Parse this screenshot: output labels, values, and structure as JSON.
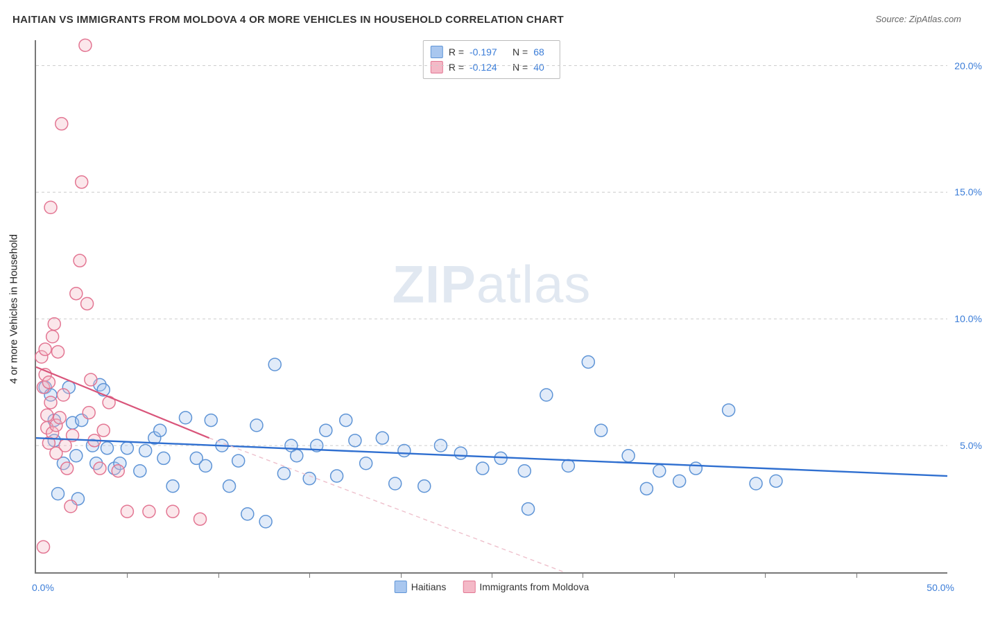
{
  "title": "HAITIAN VS IMMIGRANTS FROM MOLDOVA 4 OR MORE VEHICLES IN HOUSEHOLD CORRELATION CHART",
  "source": "Source: ZipAtlas.com",
  "y_axis_label": "4 or more Vehicles in Household",
  "watermark_bold": "ZIP",
  "watermark_light": "atlas",
  "chart": {
    "type": "scatter",
    "background_color": "#ffffff",
    "grid_color": "#cccccc",
    "axis_color": "#777777",
    "x": {
      "min": 0.0,
      "max": 50.0,
      "min_label": "0.0%",
      "max_label": "50.0%",
      "ticks_at": [
        5,
        10,
        15,
        20,
        25,
        30,
        35,
        40,
        45
      ]
    },
    "y": {
      "min": 0.0,
      "max": 21.0,
      "grid_at": [
        5,
        10,
        15,
        20
      ],
      "labels": [
        "5.0%",
        "10.0%",
        "15.0%",
        "20.0%"
      ]
    },
    "marker_radius": 9,
    "marker_stroke_width": 1.5,
    "marker_fill_opacity": 0.35,
    "series": [
      {
        "key": "haitians",
        "label": "Haitians",
        "color_fill": "#a9c7ef",
        "color_stroke": "#5e94d6",
        "R": "-0.197",
        "N": "68",
        "trend": {
          "x1": 0,
          "y1": 5.3,
          "x2": 50,
          "y2": 3.8,
          "color": "#2f6fd0",
          "width": 2.4,
          "dash": ""
        },
        "points": [
          [
            0.5,
            7.3
          ],
          [
            0.8,
            7.0
          ],
          [
            1.0,
            6.0
          ],
          [
            1.0,
            5.2
          ],
          [
            1.2,
            3.1
          ],
          [
            1.5,
            4.3
          ],
          [
            1.8,
            7.3
          ],
          [
            2.0,
            5.9
          ],
          [
            2.2,
            4.6
          ],
          [
            2.3,
            2.9
          ],
          [
            2.5,
            6.0
          ],
          [
            3.1,
            5.0
          ],
          [
            3.3,
            4.3
          ],
          [
            3.5,
            7.4
          ],
          [
            3.7,
            7.2
          ],
          [
            3.9,
            4.9
          ],
          [
            4.3,
            4.1
          ],
          [
            4.6,
            4.3
          ],
          [
            5.0,
            4.9
          ],
          [
            5.7,
            4.0
          ],
          [
            6.0,
            4.8
          ],
          [
            6.5,
            5.3
          ],
          [
            7.0,
            4.5
          ],
          [
            7.5,
            3.4
          ],
          [
            8.2,
            6.1
          ],
          [
            8.8,
            4.5
          ],
          [
            9.3,
            4.2
          ],
          [
            9.6,
            6.0
          ],
          [
            10.2,
            5.0
          ],
          [
            10.6,
            3.4
          ],
          [
            11.1,
            4.4
          ],
          [
            11.6,
            2.3
          ],
          [
            12.1,
            5.8
          ],
          [
            12.6,
            2.0
          ],
          [
            13.1,
            8.2
          ],
          [
            13.6,
            3.9
          ],
          [
            14.0,
            5.0
          ],
          [
            14.3,
            4.6
          ],
          [
            15.0,
            3.7
          ],
          [
            15.4,
            5.0
          ],
          [
            15.9,
            5.6
          ],
          [
            16.5,
            3.8
          ],
          [
            17.0,
            6.0
          ],
          [
            17.5,
            5.2
          ],
          [
            18.1,
            4.3
          ],
          [
            19.0,
            5.3
          ],
          [
            19.7,
            3.5
          ],
          [
            20.2,
            4.8
          ],
          [
            21.3,
            3.4
          ],
          [
            22.2,
            5.0
          ],
          [
            23.3,
            4.7
          ],
          [
            24.5,
            4.1
          ],
          [
            25.5,
            4.5
          ],
          [
            26.8,
            4.0
          ],
          [
            27.0,
            2.5
          ],
          [
            28.0,
            7.0
          ],
          [
            29.2,
            4.2
          ],
          [
            30.3,
            8.3
          ],
          [
            31.0,
            5.6
          ],
          [
            33.5,
            3.3
          ],
          [
            34.2,
            4.0
          ],
          [
            35.3,
            3.6
          ],
          [
            36.2,
            4.1
          ],
          [
            38.0,
            6.4
          ],
          [
            39.5,
            3.5
          ],
          [
            40.6,
            3.6
          ],
          [
            32.5,
            4.6
          ],
          [
            6.8,
            5.6
          ]
        ]
      },
      {
        "key": "moldova",
        "label": "Immigrants from Moldova",
        "color_fill": "#f4b9c7",
        "color_stroke": "#e37693",
        "R": "-0.124",
        "N": "40",
        "trend_solid": {
          "x1": 0,
          "y1": 8.1,
          "x2": 9.5,
          "y2": 5.3,
          "color": "#d9547a",
          "width": 2.2
        },
        "trend_dash": {
          "x1": 9.5,
          "y1": 5.3,
          "x2": 29,
          "y2": 0.0,
          "color": "#eec0cc",
          "width": 1.4,
          "dash": "6 5"
        },
        "points": [
          [
            0.3,
            8.5
          ],
          [
            0.4,
            7.3
          ],
          [
            0.5,
            8.8
          ],
          [
            0.5,
            7.8
          ],
          [
            0.6,
            6.2
          ],
          [
            0.6,
            5.7
          ],
          [
            0.7,
            5.1
          ],
          [
            0.7,
            7.5
          ],
          [
            0.8,
            6.7
          ],
          [
            0.8,
            14.4
          ],
          [
            0.9,
            5.5
          ],
          [
            0.9,
            9.3
          ],
          [
            1.0,
            9.8
          ],
          [
            1.1,
            4.7
          ],
          [
            1.1,
            5.8
          ],
          [
            1.2,
            8.7
          ],
          [
            1.3,
            6.1
          ],
          [
            1.4,
            17.7
          ],
          [
            1.5,
            7.0
          ],
          [
            1.6,
            5.0
          ],
          [
            1.7,
            4.1
          ],
          [
            1.9,
            2.6
          ],
          [
            2.0,
            5.4
          ],
          [
            2.2,
            11.0
          ],
          [
            2.4,
            12.3
          ],
          [
            2.5,
            15.4
          ],
          [
            2.7,
            20.8
          ],
          [
            2.8,
            10.6
          ],
          [
            2.9,
            6.3
          ],
          [
            3.0,
            7.6
          ],
          [
            3.2,
            5.2
          ],
          [
            3.5,
            4.1
          ],
          [
            3.7,
            5.6
          ],
          [
            4.0,
            6.7
          ],
          [
            4.5,
            4.0
          ],
          [
            5.0,
            2.4
          ],
          [
            6.2,
            2.4
          ],
          [
            7.5,
            2.4
          ],
          [
            9.0,
            2.1
          ],
          [
            0.4,
            1.0
          ]
        ]
      }
    ]
  },
  "legend_top": {
    "r_label": "R =",
    "n_label": "N ="
  }
}
